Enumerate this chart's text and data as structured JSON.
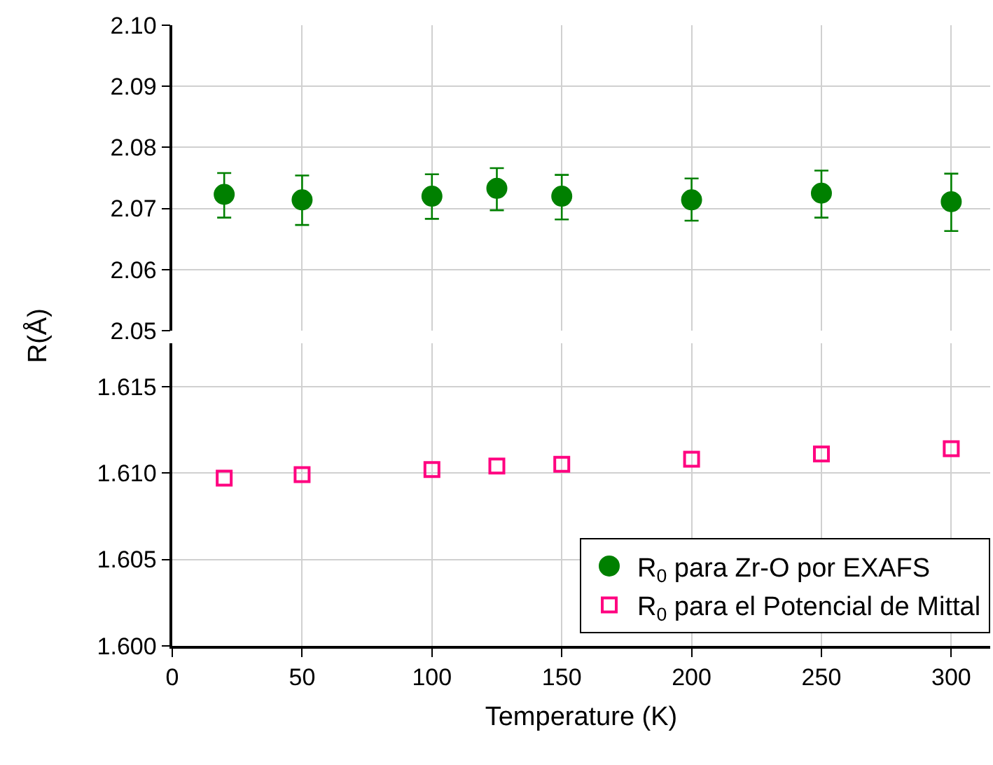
{
  "chart_data": [
    {
      "type": "scatter",
      "ylabel": "R(Å)",
      "x": [
        20,
        50,
        100,
        125,
        150,
        200,
        250,
        300
      ],
      "xlim": [
        0,
        315
      ],
      "xticks": [
        0,
        50,
        100,
        150,
        200,
        250,
        300
      ],
      "ylim": [
        2.05,
        2.1
      ],
      "yticks": [
        2.05,
        2.06,
        2.07,
        2.08,
        2.09,
        {
          "value": 2.1,
          "label": "2.10"
        }
      ],
      "grid": true,
      "tick_labels": "y",
      "series": [
        {
          "name": "R$_{0}$ para Zr-O por EXAFS",
          "color": "#008000",
          "marker": "circle",
          "values": [
            2.0723,
            2.0714,
            2.072,
            2.0733,
            2.072,
            2.0714,
            2.0725,
            2.0711
          ],
          "errors": [
            [
              2.0685,
              2.0758
            ],
            [
              2.0673,
              2.0754
            ],
            [
              2.0683,
              2.0756
            ],
            [
              2.0697,
              2.0766
            ],
            [
              2.0682,
              2.0755
            ],
            [
              2.068,
              2.0749
            ],
            [
              2.0685,
              2.0762
            ],
            [
              2.0663,
              2.0757
            ]
          ]
        }
      ]
    },
    {
      "type": "scatter",
      "xlabel": "Temperature (K)",
      "x": [
        20,
        50,
        100,
        125,
        150,
        200,
        250,
        300
      ],
      "xlim": [
        0,
        315
      ],
      "xticks": [
        0,
        50,
        100,
        150,
        200,
        250,
        300
      ],
      "ylim": [
        1.6,
        1.6175
      ],
      "yticks": [
        {
          "value": 1.6,
          "label": "1.600"
        },
        1.605,
        {
          "value": 1.61,
          "label": "1.610"
        },
        1.615
      ],
      "grid": true,
      "legend": "bottom right",
      "series": [
        {
          "name": "R$_{0}$ para el Potencial de Mittal",
          "color": "#ff0080",
          "marker": "square",
          "values": [
            1.6097,
            1.6099,
            1.6102,
            1.6104,
            1.6105,
            1.6108,
            1.6111,
            1.6114
          ]
        }
      ]
    }
  ]
}
